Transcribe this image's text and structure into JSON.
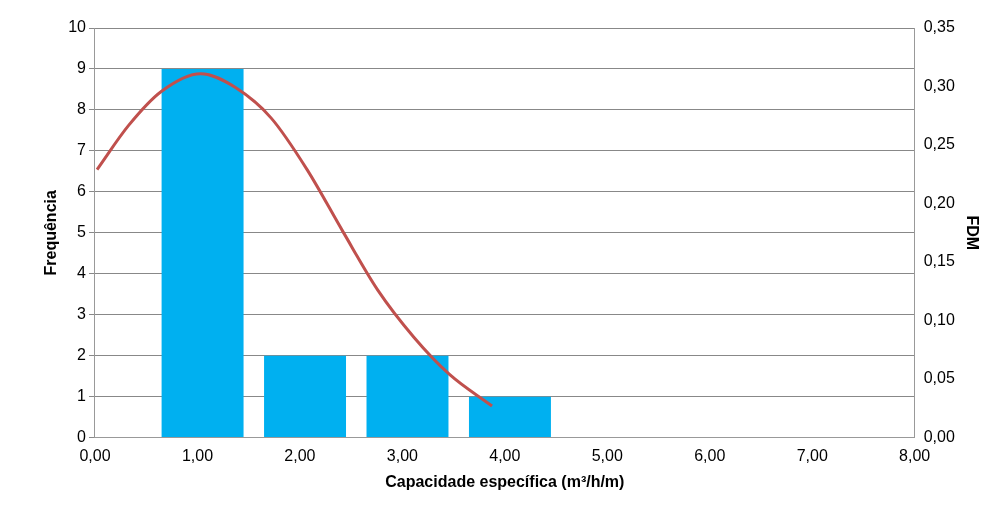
{
  "chart_data": {
    "type": "histogram",
    "xlabel": "Capacidade específica (m³/h/m)",
    "ylabel": "Frequência",
    "y2label": "FDM",
    "bins": [
      0.55,
      1.55,
      2.55,
      3.55,
      4.55
    ],
    "values": [
      9,
      2,
      2,
      1
    ],
    "color": "#00b0f0",
    "series": [
      {
        "type": "line",
        "axis": "y2",
        "color": "#c0504d",
        "marker": "none",
        "x": [
          0.02,
          0.33,
          0.65,
          1.03,
          1.375,
          1.72,
          2.07,
          2.42,
          2.76,
          3.11,
          3.46,
          3.875
        ],
        "values": [
          0.229,
          0.267,
          0.296,
          0.311,
          0.299,
          0.273,
          0.229,
          0.176,
          0.126,
          0.086,
          0.054,
          0.027
        ]
      }
    ],
    "xlim": [
      0,
      8
    ],
    "xticks": [
      {
        "value": 0,
        "label": "0,00"
      },
      {
        "value": 1,
        "label": "1,00"
      },
      {
        "value": 2,
        "label": "2,00"
      },
      {
        "value": 3,
        "label": "3,00"
      },
      {
        "value": 4,
        "label": "4,00"
      },
      {
        "value": 5,
        "label": "5,00"
      },
      {
        "value": 6,
        "label": "6,00"
      },
      {
        "value": 7,
        "label": "7,00"
      },
      {
        "value": 8,
        "label": "8,00"
      }
    ],
    "ylim": [
      0,
      10
    ],
    "yticks": [
      0,
      1,
      2,
      3,
      4,
      5,
      6,
      7,
      8,
      9,
      10
    ],
    "y2lim": [
      0,
      0.35
    ],
    "y2ticks": [
      {
        "value": 0,
        "label": "0,00"
      },
      {
        "value": 0.05,
        "label": "0,05"
      },
      {
        "value": 0.1,
        "label": "0,10"
      },
      {
        "value": 0.15,
        "label": "0,15"
      },
      {
        "value": 0.2,
        "label": "0,20"
      },
      {
        "value": 0.25,
        "label": "0,25"
      },
      {
        "value": 0.3,
        "label": "0,30"
      },
      {
        "value": 0.35,
        "label": "0,35"
      }
    ],
    "grid": "y",
    "legend": false
  }
}
